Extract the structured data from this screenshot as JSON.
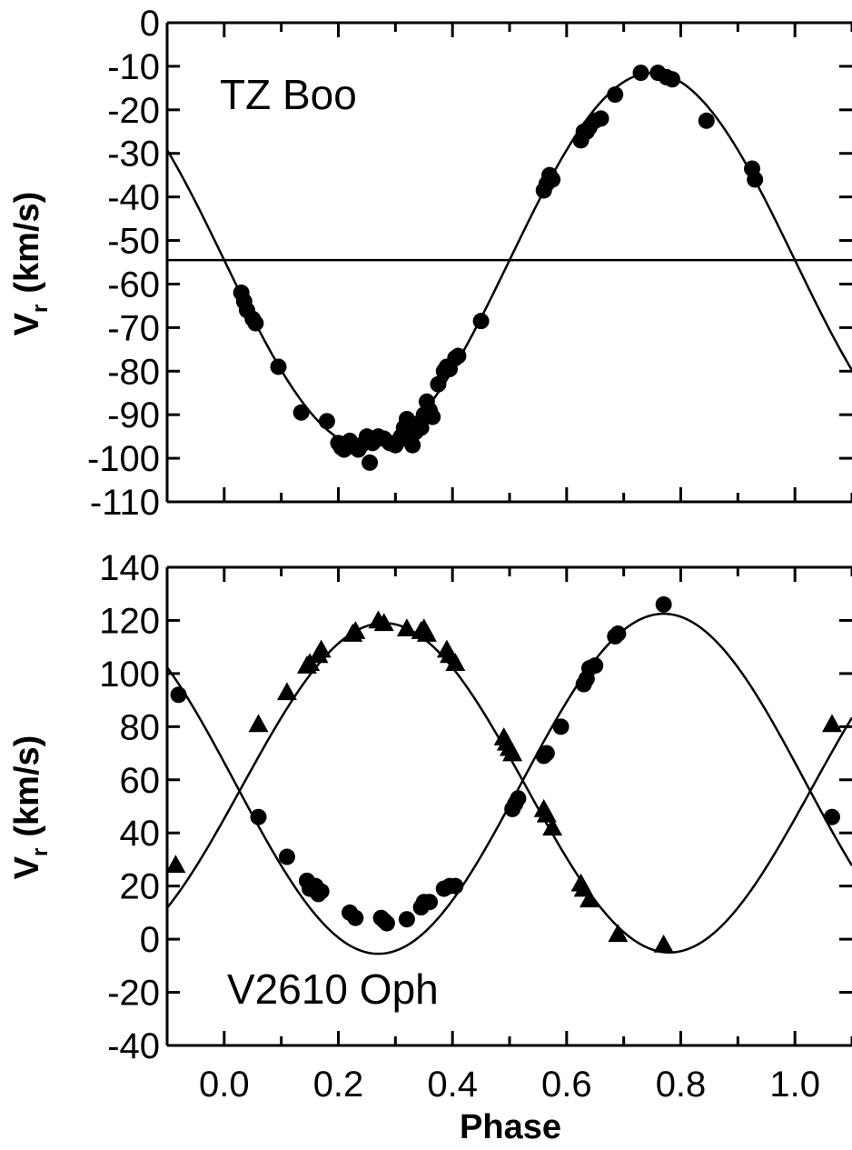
{
  "chart_data": [
    {
      "type": "scatter",
      "panel": "top",
      "annotation": "TZ Boo",
      "xlabel": "",
      "ylabel": "V",
      "ylabel_sub": "r",
      "ylabel_unit": "(km/s)",
      "xlim": [
        -0.1,
        1.1
      ],
      "ylim": [
        -110,
        0
      ],
      "yticks": [
        0,
        -10,
        -20,
        -30,
        -40,
        -50,
        -60,
        -70,
        -80,
        -90,
        -100,
        -110
      ],
      "ytick_labels": [
        "0",
        "-10",
        "-20",
        "-30",
        "-40",
        "-50",
        "-60",
        "-70",
        "-80",
        "-90",
        "-100",
        "-110"
      ],
      "xticks": [
        0.0,
        0.2,
        0.4,
        0.6,
        0.8,
        1.0
      ],
      "systemic_velocity": -54.5,
      "fit_curve": {
        "gamma": -54.5,
        "K": 43,
        "phase_of_max": 0.75
      },
      "series": [
        {
          "marker": "circle",
          "x": [
            0.03,
            0.035,
            0.04,
            0.05,
            0.055,
            0.095,
            0.135,
            0.18,
            0.2,
            0.205,
            0.21,
            0.215,
            0.22,
            0.23,
            0.235,
            0.24,
            0.25,
            0.255,
            0.26,
            0.27,
            0.28,
            0.29,
            0.3,
            0.305,
            0.31,
            0.315,
            0.32,
            0.325,
            0.33,
            0.335,
            0.34,
            0.345,
            0.35,
            0.355,
            0.36,
            0.365,
            0.375,
            0.385,
            0.39,
            0.395,
            0.405,
            0.41,
            0.45,
            0.56,
            0.565,
            0.57,
            0.575,
            0.625,
            0.63,
            0.635,
            0.64,
            0.65,
            0.66,
            0.685,
            0.73,
            0.76,
            0.775,
            0.785,
            0.845,
            0.925,
            0.93
          ],
          "y": [
            -62,
            -64,
            -66,
            -68,
            -69,
            -79,
            -89.5,
            -91.5,
            -96.5,
            -97.5,
            -98,
            -97,
            -96,
            -97.5,
            -98,
            -97,
            -95,
            -101,
            -96.5,
            -95,
            -95.5,
            -96.5,
            -97,
            -96,
            -95,
            -93,
            -91,
            -95,
            -97,
            -94,
            -92,
            -93,
            -90,
            -87,
            -89,
            -90.5,
            -83,
            -80,
            -79,
            -79.5,
            -77,
            -76.5,
            -68.5,
            -38.5,
            -37,
            -35,
            -36,
            -27,
            -25,
            -25,
            -24,
            -22.5,
            -22,
            -16.5,
            -11.5,
            -11.5,
            -12.5,
            -13,
            -22.5,
            -33.5,
            -36
          ]
        }
      ]
    },
    {
      "type": "scatter",
      "panel": "bottom",
      "annotation": "V2610 Oph",
      "xlabel": "Phase",
      "ylabel": "V",
      "ylabel_sub": "r",
      "ylabel_unit": "(km/s)",
      "xlim": [
        -0.1,
        1.1
      ],
      "ylim": [
        -40,
        140
      ],
      "yticks": [
        140,
        120,
        100,
        80,
        60,
        40,
        20,
        0,
        -20,
        -40
      ],
      "ytick_labels": [
        "140",
        "120",
        "100",
        "80",
        "60",
        "40",
        "20",
        "0",
        "-20",
        "-40"
      ],
      "xticks": [
        0.0,
        0.2,
        0.4,
        0.6,
        0.8,
        1.0
      ],
      "xtick_labels": [
        "0.0",
        "0.2",
        "0.4",
        "0.6",
        "0.8",
        "1.0"
      ],
      "fit_curves": [
        {
          "gamma": 58.5,
          "K": 64,
          "phase_of_max": 0.77
        },
        {
          "gamma": 57,
          "K": 62,
          "phase_of_max": 0.28
        }
      ],
      "series": [
        {
          "marker": "circle",
          "x": [
            -0.08,
            0.06,
            0.11,
            0.145,
            0.15,
            0.16,
            0.165,
            0.17,
            0.22,
            0.23,
            0.275,
            0.28,
            0.285,
            0.32,
            0.345,
            0.35,
            0.36,
            0.385,
            0.395,
            0.405,
            0.505,
            0.51,
            0.515,
            0.56,
            0.565,
            0.59,
            0.63,
            0.635,
            0.64,
            0.65,
            0.685,
            0.69,
            0.77,
            1.065
          ],
          "y": [
            92,
            46,
            31,
            22,
            19,
            20,
            17,
            18,
            10,
            8,
            8,
            7,
            6,
            7.5,
            12,
            14,
            14,
            19,
            20,
            20,
            49,
            51,
            53,
            69,
            70,
            80,
            96,
            98,
            102,
            103,
            114,
            115,
            126,
            46
          ]
        },
        {
          "marker": "triangle",
          "x": [
            -0.085,
            0.06,
            0.11,
            0.145,
            0.15,
            0.165,
            0.17,
            0.225,
            0.23,
            0.27,
            0.28,
            0.32,
            0.345,
            0.35,
            0.355,
            0.39,
            0.395,
            0.405,
            0.49,
            0.495,
            0.5,
            0.505,
            0.56,
            0.565,
            0.575,
            0.625,
            0.63,
            0.64,
            0.69,
            0.77,
            1.065
          ],
          "y": [
            28,
            81,
            93,
            103,
            104,
            107,
            109,
            115,
            116,
            120,
            119,
            117,
            116,
            117,
            115,
            109,
            107,
            104,
            76,
            74,
            72,
            70,
            49,
            47,
            42,
            21,
            19,
            15,
            2,
            -2,
            81
          ]
        }
      ]
    }
  ]
}
